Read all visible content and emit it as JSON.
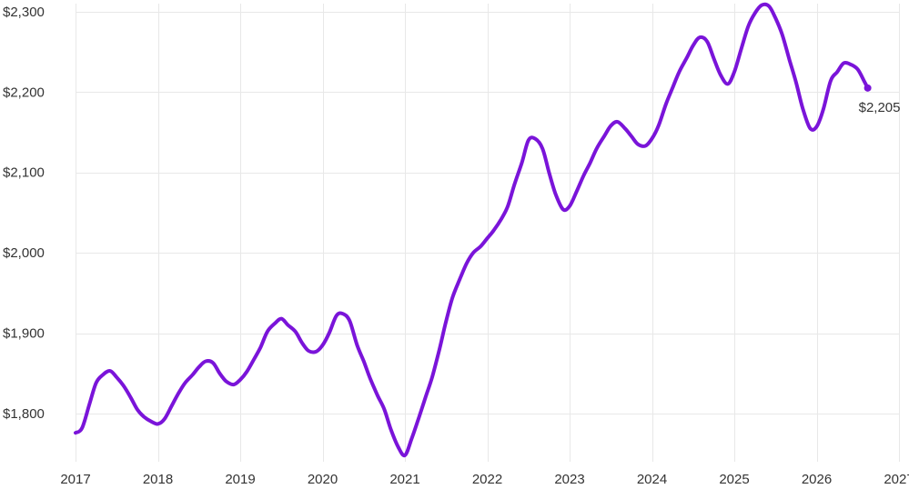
{
  "chart_data": {
    "type": "line",
    "title": "",
    "xlabel": "",
    "ylabel": "",
    "color": "#7a14d9",
    "grid": true,
    "xlim": [
      2017,
      2027
    ],
    "ylim": [
      1740,
      2310
    ],
    "y_ticks": [
      {
        "value": 1800,
        "label": "$1,800"
      },
      {
        "value": 1900,
        "label": "$1,900"
      },
      {
        "value": 2000,
        "label": "$2,000"
      },
      {
        "value": 2100,
        "label": "$2,100"
      },
      {
        "value": 2200,
        "label": "$2,200"
      },
      {
        "value": 2300,
        "label": "$2,300"
      }
    ],
    "x_ticks": [
      {
        "value": 2017,
        "label": "2017"
      },
      {
        "value": 2018,
        "label": "2018"
      },
      {
        "value": 2019,
        "label": "2019"
      },
      {
        "value": 2020,
        "label": "2020"
      },
      {
        "value": 2021,
        "label": "2021"
      },
      {
        "value": 2022,
        "label": "2022"
      },
      {
        "value": 2023,
        "label": "2023"
      },
      {
        "value": 2024,
        "label": "2024"
      },
      {
        "value": 2025,
        "label": "2025"
      },
      {
        "value": 2026,
        "label": "2026"
      },
      {
        "value": 2027,
        "label": "2027"
      }
    ],
    "end_label": "$2,205",
    "series": [
      {
        "x": [
          2017.0,
          2017.08,
          2017.17,
          2017.25,
          2017.33,
          2017.42,
          2017.5,
          2017.58,
          2017.67,
          2017.75,
          2017.83,
          2017.92,
          2018.0,
          2018.08,
          2018.17,
          2018.25,
          2018.33,
          2018.42,
          2018.5,
          2018.58,
          2018.67,
          2018.75,
          2018.83,
          2018.92,
          2019.0,
          2019.08,
          2019.17,
          2019.25,
          2019.33,
          2019.42,
          2019.5,
          2019.58,
          2019.67,
          2019.75,
          2019.83,
          2019.92,
          2020.0,
          2020.08,
          2020.17,
          2020.25,
          2020.33,
          2020.42,
          2020.5,
          2020.58,
          2020.67,
          2020.75,
          2020.83,
          2020.92,
          2021.0,
          2021.08,
          2021.17,
          2021.25,
          2021.33,
          2021.42,
          2021.5,
          2021.58,
          2021.67,
          2021.75,
          2021.83,
          2021.92,
          2022.0,
          2022.08,
          2022.17,
          2022.25,
          2022.33,
          2022.42,
          2022.5,
          2022.58,
          2022.67,
          2022.75,
          2022.83,
          2022.92,
          2023.0,
          2023.08,
          2023.17,
          2023.25,
          2023.33,
          2023.42,
          2023.5,
          2023.58,
          2023.67,
          2023.75,
          2023.83,
          2023.92,
          2024.0,
          2024.08,
          2024.17,
          2024.25,
          2024.33,
          2024.42,
          2024.5,
          2024.58,
          2024.67,
          2024.75,
          2024.83,
          2024.92,
          2025.0,
          2025.08,
          2025.17,
          2025.25,
          2025.33,
          2025.42,
          2025.5,
          2025.58,
          2025.67,
          2025.75,
          2025.83,
          2025.92,
          2026.0,
          2026.08,
          2026.17,
          2026.25,
          2026.33,
          2026.42,
          2026.5,
          2026.58,
          2026.62
        ],
        "values": [
          1776,
          1782,
          1812,
          1838,
          1848,
          1853,
          1845,
          1835,
          1820,
          1805,
          1796,
          1790,
          1787,
          1793,
          1810,
          1825,
          1838,
          1848,
          1858,
          1865,
          1863,
          1850,
          1840,
          1836,
          1842,
          1852,
          1868,
          1883,
          1902,
          1912,
          1918,
          1910,
          1902,
          1888,
          1878,
          1877,
          1885,
          1900,
          1922,
          1924,
          1915,
          1885,
          1865,
          1843,
          1822,
          1805,
          1780,
          1758,
          1748,
          1768,
          1795,
          1820,
          1845,
          1880,
          1915,
          1945,
          1968,
          1987,
          2000,
          2008,
          2018,
          2028,
          2042,
          2058,
          2085,
          2112,
          2140,
          2142,
          2130,
          2100,
          2073,
          2054,
          2058,
          2075,
          2096,
          2112,
          2130,
          2145,
          2158,
          2163,
          2155,
          2145,
          2135,
          2133,
          2142,
          2158,
          2185,
          2205,
          2225,
          2242,
          2258,
          2268,
          2263,
          2242,
          2222,
          2210,
          2225,
          2252,
          2282,
          2298,
          2308,
          2307,
          2292,
          2272,
          2240,
          2212,
          2180,
          2155,
          2157,
          2178,
          2214,
          2225,
          2236,
          2234,
          2228,
          2213,
          2205
        ]
      }
    ]
  }
}
